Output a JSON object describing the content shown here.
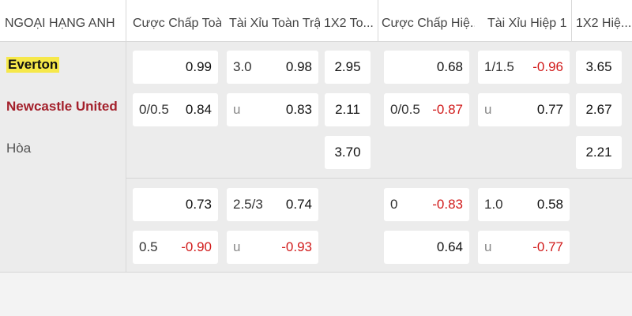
{
  "header": {
    "league": "NGOẠI HẠNG ANH",
    "columns": [
      "Cược Chấp Toà...",
      "Tài Xỉu Toàn Trận",
      "1X2 To...",
      "Cược Chấp Hiệ...",
      "Tài Xỉu Hiệp 1",
      "1X2 Hiệ..."
    ]
  },
  "teams": {
    "home": "Everton",
    "away": "Newcastle United",
    "draw": "Hòa"
  },
  "main": {
    "ah_ft": {
      "home": {
        "line": "",
        "odds": "0.99"
      },
      "away": {
        "line": "0/0.5",
        "odds": "0.84"
      }
    },
    "ou_ft": {
      "over": {
        "line": "3.0",
        "odds": "0.98"
      },
      "under": {
        "line": "u",
        "odds": "0.83"
      }
    },
    "x12_ft": {
      "home": "2.95",
      "away": "2.11",
      "draw": "3.70"
    },
    "ah_h1": {
      "home": {
        "line": "",
        "odds": "0.68"
      },
      "away": {
        "line": "0/0.5",
        "odds": "-0.87"
      }
    },
    "ou_h1": {
      "over": {
        "line": "1/1.5",
        "odds": "-0.96"
      },
      "under": {
        "line": "u",
        "odds": "0.77"
      }
    },
    "x12_h1": {
      "home": "3.65",
      "away": "2.67",
      "draw": "2.21"
    }
  },
  "alt": {
    "ah_ft": {
      "home": {
        "line": "",
        "odds": "0.73"
      },
      "away": {
        "line": "0.5",
        "odds": "-0.90"
      }
    },
    "ou_ft": {
      "over": {
        "line": "2.5/3",
        "odds": "0.74"
      },
      "under": {
        "line": "u",
        "odds": "-0.93"
      }
    },
    "ah_h1": {
      "home": {
        "line": "0",
        "odds": "-0.83"
      },
      "away": {
        "line": "",
        "odds": "0.64"
      }
    },
    "ou_h1": {
      "over": {
        "line": "1.0",
        "odds": "0.58"
      },
      "under": {
        "line": "u",
        "odds": "-0.77"
      }
    }
  },
  "colors": {
    "negative": "#d11a1a",
    "away_team": "#a3202b",
    "highlight": "#f6e84a"
  }
}
